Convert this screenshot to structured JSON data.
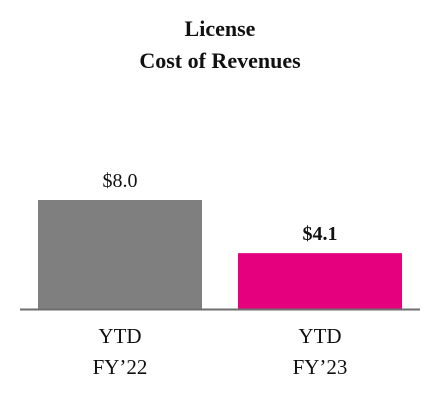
{
  "chart_data": {
    "type": "bar",
    "title": [
      "License",
      "Cost of Revenues"
    ],
    "categories": [
      [
        "YTD",
        "FY’22"
      ],
      [
        "YTD",
        "FY’23"
      ]
    ],
    "values": [
      8.0,
      4.1
    ],
    "data_labels": [
      "$8.0",
      "$4.1"
    ],
    "data_label_bold": [
      false,
      true
    ],
    "colors": [
      "#7f7f7f",
      "#e5007e"
    ],
    "axis_color": "#6e6e6e",
    "ylim": [
      0,
      8.0
    ],
    "grid": false,
    "legend": "none"
  }
}
